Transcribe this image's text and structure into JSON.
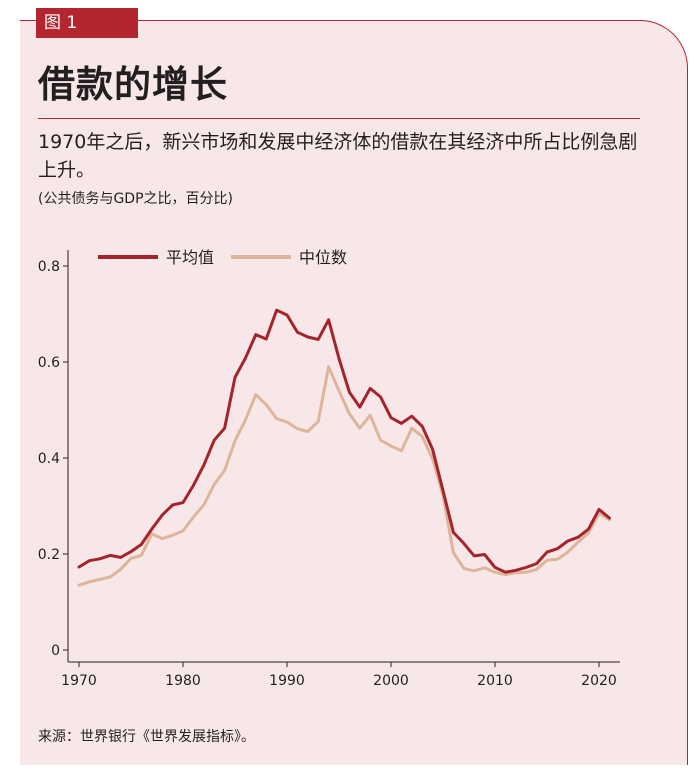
{
  "figure_label": "图 1",
  "title": "借款的增长",
  "subtitle": "1970年之后，新兴市场和发展中经济体的借款在其经济中所占比例急剧上升。",
  "unit_note": "(公共债务与GDP之比，百分比)",
  "source": "来源：世界银行《世界发展指标》。",
  "colors": {
    "accent": "#b3262f",
    "mean": "#a4242c",
    "median": "#ddb59a",
    "background": "#f8e7e8"
  },
  "chart_data": {
    "type": "line",
    "xlim": [
      1969,
      2022
    ],
    "ylim": [
      0,
      0.85
    ],
    "x_ticks": [
      1970,
      1980,
      1990,
      2000,
      2010,
      2020
    ],
    "y_ticks": [
      0,
      0.2,
      0.4,
      0.6,
      0.8
    ],
    "y_tick_labels": [
      "0",
      "0.2",
      "0.4",
      "0.6",
      "0.8"
    ],
    "legend_position": "top-left",
    "grid": false,
    "x": [
      1970,
      1971,
      1972,
      1973,
      1974,
      1975,
      1976,
      1977,
      1978,
      1979,
      1980,
      1981,
      1982,
      1983,
      1984,
      1985,
      1986,
      1987,
      1988,
      1989,
      1990,
      1991,
      1992,
      1993,
      1994,
      1995,
      1996,
      1997,
      1998,
      1999,
      2000,
      2001,
      2002,
      2003,
      2004,
      2005,
      2006,
      2007,
      2008,
      2009,
      2010,
      2011,
      2012,
      2013,
      2014,
      2015,
      2016,
      2017,
      2018,
      2019,
      2020,
      2021
    ],
    "series": [
      {
        "name": "平均值",
        "color": "#a4242c",
        "values": [
          0.173,
          0.186,
          0.19,
          0.197,
          0.193,
          0.205,
          0.22,
          0.252,
          0.281,
          0.302,
          0.307,
          0.343,
          0.385,
          0.437,
          0.462,
          0.568,
          0.608,
          0.657,
          0.648,
          0.708,
          0.698,
          0.662,
          0.652,
          0.647,
          0.688,
          0.607,
          0.537,
          0.506,
          0.545,
          0.527,
          0.484,
          0.472,
          0.487,
          0.466,
          0.418,
          0.332,
          0.245,
          0.222,
          0.196,
          0.199,
          0.172,
          0.162,
          0.166,
          0.172,
          0.18,
          0.204,
          0.211,
          0.227,
          0.235,
          0.252,
          0.293,
          0.275
        ]
      },
      {
        "name": "中位数",
        "color": "#ddb59a",
        "values": [
          0.135,
          0.142,
          0.147,
          0.152,
          0.168,
          0.191,
          0.197,
          0.242,
          0.232,
          0.239,
          0.248,
          0.277,
          0.302,
          0.345,
          0.374,
          0.436,
          0.479,
          0.532,
          0.511,
          0.482,
          0.475,
          0.461,
          0.455,
          0.476,
          0.59,
          0.54,
          0.492,
          0.462,
          0.489,
          0.437,
          0.425,
          0.415,
          0.462,
          0.445,
          0.398,
          0.322,
          0.203,
          0.17,
          0.165,
          0.171,
          0.162,
          0.157,
          0.161,
          0.162,
          0.168,
          0.187,
          0.189,
          0.204,
          0.225,
          0.244,
          0.285,
          0.271
        ]
      }
    ]
  }
}
